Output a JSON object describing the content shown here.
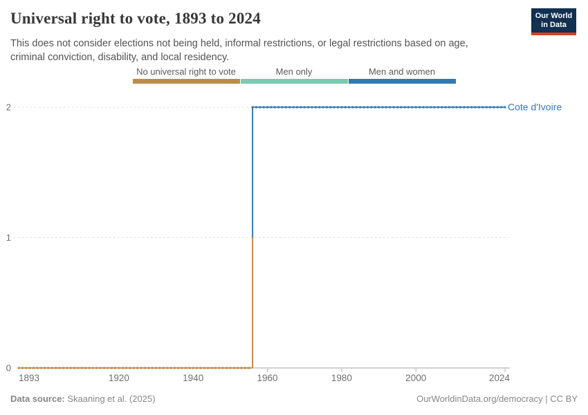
{
  "header": {
    "title": "Universal right to vote, 1893 to 2024",
    "subtitle": "This does not consider elections not being held, informal restrictions, or legal restrictions based on age, criminal conviction, disability, and local residency.",
    "logo": {
      "line1": "Our World",
      "line2": "in Data",
      "bg_color": "#12304f",
      "accent_color": "#dc3e1c"
    }
  },
  "legend": {
    "items": [
      {
        "label": "No universal right to vote",
        "color": "#bf8b4c"
      },
      {
        "label": "Men only",
        "color": "#7dc9b2"
      },
      {
        "label": "Men and women",
        "color": "#3379af"
      }
    ]
  },
  "chart_data": {
    "type": "line",
    "style": "step-line-with-yearly-markers",
    "title": "Universal right to vote, 1893 to 2024",
    "entity": "Cote d'Ivoire",
    "x_range": [
      1893,
      2024
    ],
    "ylim": [
      0,
      2
    ],
    "x_ticks": [
      1893,
      1920,
      1940,
      1960,
      1980,
      2000,
      2024
    ],
    "x_tick_marks": [
      1960,
      1980,
      2000,
      2024
    ],
    "y_ticks": [
      0,
      1,
      2
    ],
    "grid": "horizontal dashed",
    "category_scale": {
      "0": "No universal right to vote",
      "1": "Men only",
      "2": "Men and women"
    },
    "series": [
      {
        "name": "Cote d'Ivoire",
        "label_color": "#3579b1",
        "segments": [
          {
            "from_year": 1893,
            "to_year": 1955,
            "value": 0,
            "category": "No universal right to vote",
            "color": "#bf8b4c"
          },
          {
            "from_year": 1956,
            "to_year": 2024,
            "value": 2,
            "category": "Men and women",
            "color": "#3379af"
          }
        ]
      }
    ]
  },
  "footer": {
    "datasource_label": "Data source:",
    "datasource_value": " Skaaning et al. (2025)",
    "link": "OurWorldinData.org/democracy",
    "license": " | CC BY"
  }
}
